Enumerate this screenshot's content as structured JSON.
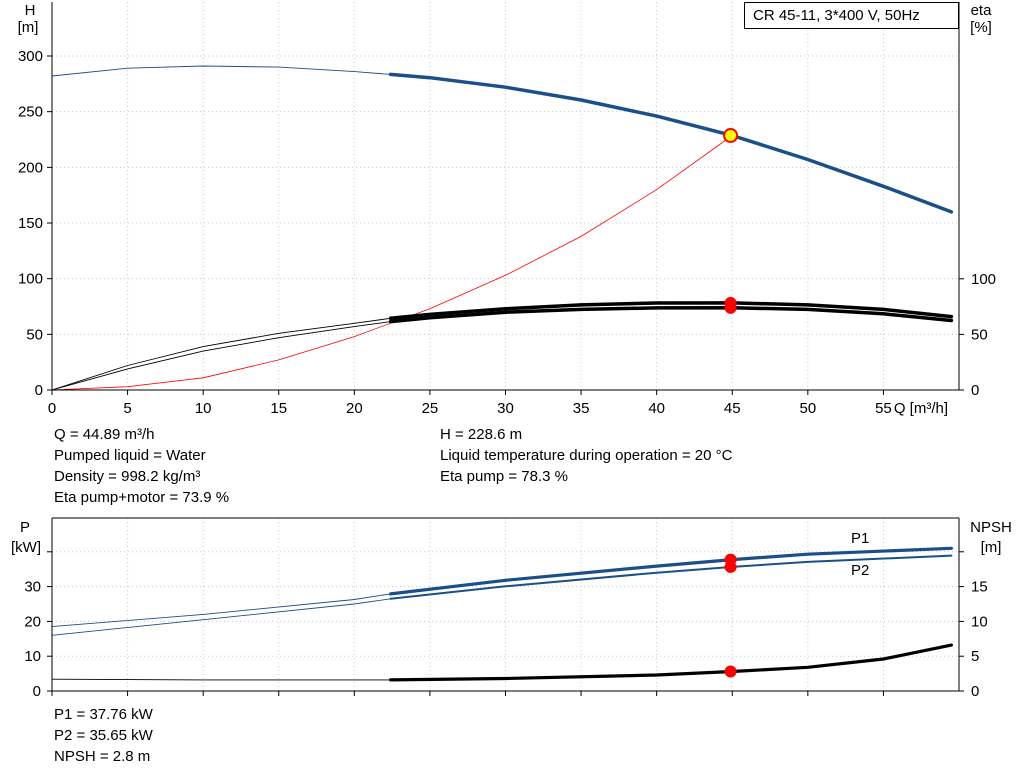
{
  "title": "CR 45-11, 3*400 V, 50Hz",
  "operating_point": {
    "left": [
      "Q = 44.89 m³/h",
      "Pumped liquid = Water",
      "Density = 998.2 kg/m³",
      "Eta pump+motor = 73.9 %"
    ],
    "right": [
      "H = 228.6 m",
      "Liquid temperature during operation = 20 °C",
      "Eta pump = 78.3 %"
    ],
    "power": [
      "P1 = 37.76 kW",
      "P2 = 35.65 kW",
      "NPSH = 2.8 m"
    ]
  },
  "colors": {
    "head": "#1b4f8a",
    "eta": "#000000",
    "system": "#ff0000",
    "power": "#1b4f8a",
    "npsh": "#000000",
    "marker": "#ff0000",
    "duty": "#ffff00"
  },
  "chart_data": [
    {
      "type": "line",
      "title": "CR 45-11, 3*400 V, 50Hz",
      "xlabel": "Q [m³/h]",
      "ylabel_left": [
        "H",
        "[m]"
      ],
      "ylabel_right": [
        "eta",
        "[%]"
      ],
      "xlim": [
        0,
        60
      ],
      "ylim": [
        0,
        300
      ],
      "yticks_left": [
        0,
        50,
        100,
        150,
        200,
        250,
        300
      ],
      "yticks_right": [
        0,
        50,
        100
      ],
      "xticks": [
        0,
        5,
        10,
        15,
        20,
        25,
        30,
        35,
        40,
        45,
        50,
        55
      ],
      "grid": true,
      "series": [
        {
          "key": "head",
          "axis": "left",
          "x": [
            0,
            5,
            10,
            15,
            20,
            22.4,
            25,
            30,
            35,
            40,
            45,
            50,
            55,
            59.5
          ],
          "values": [
            282,
            289,
            291,
            290,
            286,
            283.5,
            280.5,
            272,
            260.5,
            246,
            228.6,
            207,
            183,
            160
          ]
        },
        {
          "key": "eta_pump",
          "axis": "right",
          "x": [
            0,
            5,
            10,
            15,
            20,
            22.4,
            25,
            30,
            35,
            40,
            45,
            50,
            55,
            59.5
          ],
          "values": [
            0,
            22,
            39,
            51,
            60,
            64.5,
            68,
            73,
            76.5,
            78.2,
            78.3,
            76.5,
            72.5,
            66
          ]
        },
        {
          "key": "eta_total",
          "axis": "right",
          "x": [
            0,
            5,
            10,
            15,
            20,
            22.4,
            25,
            30,
            35,
            40,
            45,
            50,
            55,
            59.5
          ],
          "values": [
            0,
            19,
            35,
            47,
            57,
            61.5,
            65,
            70,
            72.5,
            73.8,
            73.9,
            72.5,
            68.5,
            62.5
          ]
        },
        {
          "key": "system_curve",
          "axis": "left",
          "x": [
            0,
            5,
            10,
            15,
            20,
            25,
            30,
            35,
            40,
            45
          ],
          "values": [
            0,
            3,
            11,
            27,
            48,
            73,
            103,
            138,
            180,
            228.6
          ]
        }
      ],
      "duty_point": {
        "x": 44.89,
        "y": 228.6
      },
      "markers": [
        {
          "x": 44.89,
          "eta": 78.3
        },
        {
          "x": 44.89,
          "eta": 73.9
        }
      ]
    },
    {
      "type": "line",
      "xlabel": "",
      "ylabel_left": [
        "P",
        "[kW]"
      ],
      "ylabel_right": [
        "NPSH",
        "[m]"
      ],
      "xlim": [
        0,
        60
      ],
      "ylim": [
        0,
        40
      ],
      "yticks_left": [
        0,
        10,
        20,
        30
      ],
      "yticks_right": [
        0,
        5,
        10,
        15
      ],
      "grid": true,
      "series": [
        {
          "key": "P1",
          "name": "P1",
          "axis": "left",
          "x": [
            0,
            10,
            20,
            22.4,
            30,
            40,
            45,
            50,
            59.5
          ],
          "values": [
            18.5,
            22,
            26.3,
            27.9,
            31.8,
            35.9,
            37.76,
            39.3,
            41
          ]
        },
        {
          "key": "P2",
          "name": "P2",
          "axis": "left",
          "x": [
            0,
            10,
            20,
            22.4,
            30,
            40,
            45,
            50,
            59.5
          ],
          "values": [
            16,
            20.5,
            25,
            26.5,
            30.1,
            34,
            35.65,
            37.1,
            38.9
          ]
        },
        {
          "key": "NPSH",
          "axis": "right",
          "x": [
            0,
            10,
            20,
            22.4,
            30,
            40,
            45,
            50,
            55,
            59.5
          ],
          "values": [
            1.7,
            1.6,
            1.6,
            1.6,
            1.8,
            2.3,
            2.8,
            3.4,
            4.6,
            6.6
          ]
        }
      ],
      "markers": [
        {
          "x": 44.89,
          "P1": 37.76
        },
        {
          "x": 44.89,
          "P2": 35.65
        },
        {
          "x": 44.89,
          "NPSH": 2.8
        }
      ]
    }
  ]
}
